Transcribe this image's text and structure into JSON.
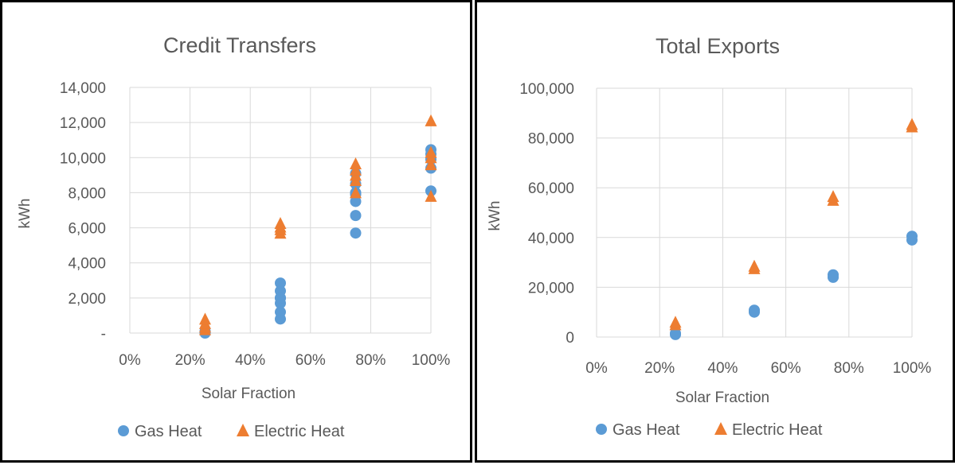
{
  "charts": [
    {
      "id": "left",
      "chart_data": {
        "type": "scatter",
        "title": "Credit Transfers",
        "xlabel": "Solar Fraction",
        "ylabel": "kWh",
        "xlim": [
          0,
          1
        ],
        "ylim": [
          0,
          14000
        ],
        "x_ticks": [
          0,
          0.2,
          0.4,
          0.6,
          0.8,
          1.0
        ],
        "x_tick_labels": [
          "0%",
          "20%",
          "40%",
          "60%",
          "80%",
          "100%"
        ],
        "y_ticks": [
          0,
          2000,
          4000,
          6000,
          8000,
          10000,
          12000,
          14000
        ],
        "y_tick_labels": [
          "-",
          "2,000",
          "4,000",
          "6,000",
          "8,000",
          "10,000",
          "12,000",
          "14,000"
        ],
        "grid": true,
        "legend_position": "bottom",
        "series": [
          {
            "name": "Gas Heat",
            "marker": "circle",
            "color": "#5B9BD5",
            "x": [
              0.25,
              0.25,
              0.25,
              0.5,
              0.5,
              0.5,
              0.5,
              0.5,
              0.5,
              0.5,
              0.75,
              0.75,
              0.75,
              0.75,
              0.75,
              0.75,
              0.75,
              1.0,
              1.0,
              1.0,
              1.0,
              1.0
            ],
            "y": [
              0,
              50,
              100,
              800,
              1200,
              1700,
              2000,
              2400,
              2850,
              2000,
              5700,
              6700,
              7500,
              8000,
              8500,
              9100,
              7900,
              8100,
              9400,
              9900,
              10200,
              10450
            ]
          },
          {
            "name": "Electric Heat",
            "marker": "triangle",
            "color": "#ED7D31",
            "x": [
              0.25,
              0.25,
              0.25,
              0.25,
              0.5,
              0.5,
              0.5,
              0.5,
              0.75,
              0.75,
              0.75,
              0.75,
              0.75,
              1.0,
              1.0,
              1.0,
              1.0,
              1.0
            ],
            "y": [
              200,
              350,
              550,
              800,
              5700,
              5900,
              6050,
              6250,
              8000,
              8700,
              9000,
              9300,
              9650,
              7800,
              9600,
              10000,
              10300,
              12100
            ]
          }
        ]
      }
    },
    {
      "id": "right",
      "chart_data": {
        "type": "scatter",
        "title": "Total Exports",
        "xlabel": "Solar Fraction",
        "ylabel": "kWh",
        "xlim": [
          0,
          1
        ],
        "ylim": [
          0,
          100000
        ],
        "x_ticks": [
          0,
          0.2,
          0.4,
          0.6,
          0.8,
          1.0
        ],
        "x_tick_labels": [
          "0%",
          "20%",
          "40%",
          "60%",
          "80%",
          "100%"
        ],
        "y_ticks": [
          0,
          20000,
          40000,
          60000,
          80000,
          100000
        ],
        "y_tick_labels": [
          "0",
          "20,000",
          "40,000",
          "60,000",
          "80,000",
          "100,000"
        ],
        "grid": true,
        "legend_position": "bottom",
        "series": [
          {
            "name": "Gas Heat",
            "marker": "circle",
            "color": "#5B9BD5",
            "x": [
              0.25,
              0.25,
              0.5,
              0.5,
              0.75,
              0.75,
              1.0,
              1.0
            ],
            "y": [
              1000,
              1500,
              10000,
              10800,
              24000,
              25000,
              39000,
              40500
            ]
          },
          {
            "name": "Electric Heat",
            "marker": "triangle",
            "color": "#ED7D31",
            "x": [
              0.25,
              0.25,
              0.5,
              0.5,
              0.75,
              0.75,
              1.0,
              1.0
            ],
            "y": [
              5000,
              6000,
              27500,
              28500,
              55000,
              56500,
              84500,
              85500
            ]
          }
        ]
      }
    }
  ]
}
